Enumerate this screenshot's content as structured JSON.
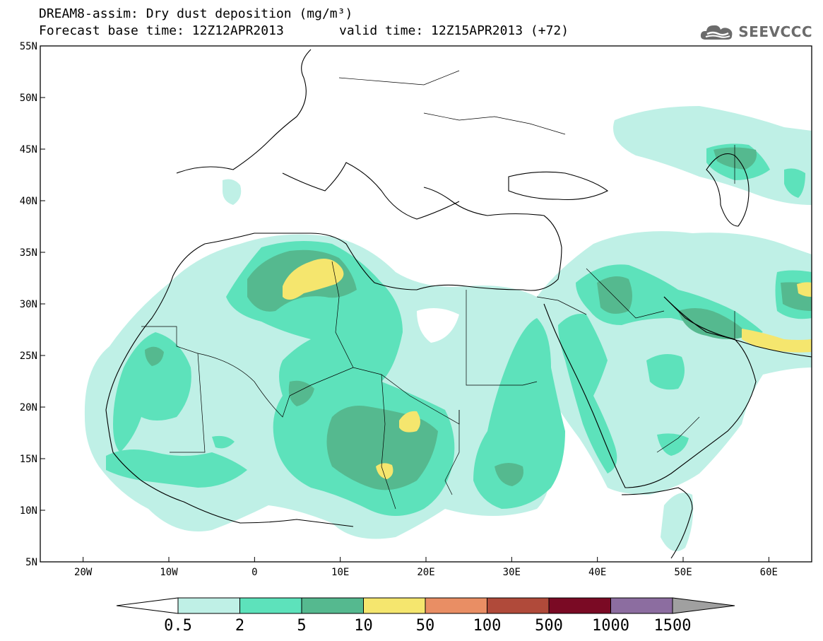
{
  "title": {
    "line1": "DREAM8-assim: Dry dust deposition (mg/m³)",
    "line2": "Forecast base time: 12Z12APR2013",
    "valid": "valid time: 12Z15APR2013 (+72)"
  },
  "logo": {
    "text": "SEEVCCC",
    "icon": "cloud-logo-icon"
  },
  "axes": {
    "lat_labels": [
      "55N",
      "50N",
      "45N",
      "40N",
      "35N",
      "30N",
      "25N",
      "20N",
      "15N",
      "10N",
      "5N"
    ],
    "lon_labels": [
      "20W",
      "10W",
      "0",
      "10E",
      "20E",
      "30E",
      "40E",
      "50E",
      "60E"
    ],
    "lat_range": [
      5,
      55
    ],
    "lon_range": [
      -25,
      65
    ]
  },
  "colorbar": {
    "levels": [
      "0.5",
      "2",
      "5",
      "10",
      "50",
      "100",
      "500",
      "1000",
      "1500"
    ],
    "colors": [
      "#bff0e6",
      "#5de2bb",
      "#55b98f",
      "#f5e66e",
      "#e98e64",
      "#b04a3a",
      "#7a0a24",
      "#8c6da0",
      "#a0a0a0"
    ],
    "under_color": "#ffffff",
    "over_color": "#a0a0a0"
  },
  "colors": {
    "light_aqua": "#bff0e6",
    "aqua": "#5de2bb",
    "teal": "#55b98f",
    "yellow": "#f5e66e"
  }
}
